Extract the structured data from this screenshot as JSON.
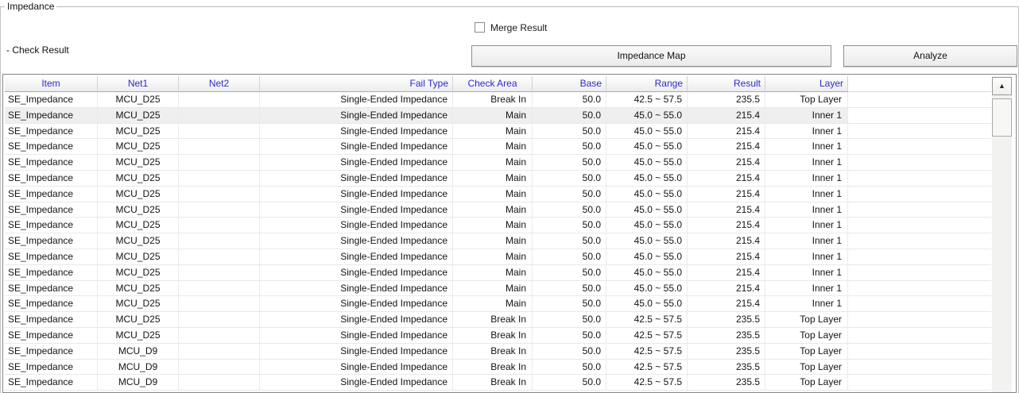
{
  "panel": {
    "title": "Impedance",
    "section_label": "- Check Result"
  },
  "toolbar": {
    "merge_result_label": "Merge Result",
    "merge_result_checked": false,
    "impedance_map_label": "Impedance Map",
    "analyze_label": "Analyze"
  },
  "table": {
    "columns": [
      {
        "key": "item",
        "label": "Item"
      },
      {
        "key": "net1",
        "label": "Net1"
      },
      {
        "key": "net2",
        "label": "Net2"
      },
      {
        "key": "fail-type",
        "label": "Fail Type"
      },
      {
        "key": "check-area",
        "label": "Check Area"
      },
      {
        "key": "base",
        "label": "Base"
      },
      {
        "key": "range",
        "label": "Range"
      },
      {
        "key": "result",
        "label": "Result"
      },
      {
        "key": "layer",
        "label": "Layer"
      }
    ],
    "selected_row_index": 1,
    "rows": [
      [
        "SE_Impedance",
        "MCU_D25",
        "",
        "Single-Ended Impedance",
        "Break In",
        "50.0",
        "42.5 ~ 57.5",
        "235.5",
        "Top Layer"
      ],
      [
        "SE_Impedance",
        "MCU_D25",
        "",
        "Single-Ended Impedance",
        "Main",
        "50.0",
        "45.0 ~ 55.0",
        "215.4",
        "Inner 1"
      ],
      [
        "SE_Impedance",
        "MCU_D25",
        "",
        "Single-Ended Impedance",
        "Main",
        "50.0",
        "45.0 ~ 55.0",
        "215.4",
        "Inner 1"
      ],
      [
        "SE_Impedance",
        "MCU_D25",
        "",
        "Single-Ended Impedance",
        "Main",
        "50.0",
        "45.0 ~ 55.0",
        "215.4",
        "Inner 1"
      ],
      [
        "SE_Impedance",
        "MCU_D25",
        "",
        "Single-Ended Impedance",
        "Main",
        "50.0",
        "45.0 ~ 55.0",
        "215.4",
        "Inner 1"
      ],
      [
        "SE_Impedance",
        "MCU_D25",
        "",
        "Single-Ended Impedance",
        "Main",
        "50.0",
        "45.0 ~ 55.0",
        "215.4",
        "Inner 1"
      ],
      [
        "SE_Impedance",
        "MCU_D25",
        "",
        "Single-Ended Impedance",
        "Main",
        "50.0",
        "45.0 ~ 55.0",
        "215.4",
        "Inner 1"
      ],
      [
        "SE_Impedance",
        "MCU_D25",
        "",
        "Single-Ended Impedance",
        "Main",
        "50.0",
        "45.0 ~ 55.0",
        "215.4",
        "Inner 1"
      ],
      [
        "SE_Impedance",
        "MCU_D25",
        "",
        "Single-Ended Impedance",
        "Main",
        "50.0",
        "45.0 ~ 55.0",
        "215.4",
        "Inner 1"
      ],
      [
        "SE_Impedance",
        "MCU_D25",
        "",
        "Single-Ended Impedance",
        "Main",
        "50.0",
        "45.0 ~ 55.0",
        "215.4",
        "Inner 1"
      ],
      [
        "SE_Impedance",
        "MCU_D25",
        "",
        "Single-Ended Impedance",
        "Main",
        "50.0",
        "45.0 ~ 55.0",
        "215.4",
        "Inner 1"
      ],
      [
        "SE_Impedance",
        "MCU_D25",
        "",
        "Single-Ended Impedance",
        "Main",
        "50.0",
        "45.0 ~ 55.0",
        "215.4",
        "Inner 1"
      ],
      [
        "SE_Impedance",
        "MCU_D25",
        "",
        "Single-Ended Impedance",
        "Main",
        "50.0",
        "45.0 ~ 55.0",
        "215.4",
        "Inner 1"
      ],
      [
        "SE_Impedance",
        "MCU_D25",
        "",
        "Single-Ended Impedance",
        "Main",
        "50.0",
        "45.0 ~ 55.0",
        "215.4",
        "Inner 1"
      ],
      [
        "SE_Impedance",
        "MCU_D25",
        "",
        "Single-Ended Impedance",
        "Break In",
        "50.0",
        "42.5 ~ 57.5",
        "235.5",
        "Top Layer"
      ],
      [
        "SE_Impedance",
        "MCU_D25",
        "",
        "Single-Ended Impedance",
        "Break In",
        "50.0",
        "42.5 ~ 57.5",
        "235.5",
        "Top Layer"
      ],
      [
        "SE_Impedance",
        "MCU_D9",
        "",
        "Single-Ended Impedance",
        "Break In",
        "50.0",
        "42.5 ~ 57.5",
        "235.5",
        "Top Layer"
      ],
      [
        "SE_Impedance",
        "MCU_D9",
        "",
        "Single-Ended Impedance",
        "Break In",
        "50.0",
        "42.5 ~ 57.5",
        "235.5",
        "Top Layer"
      ],
      [
        "SE_Impedance",
        "MCU_D9",
        "",
        "Single-Ended Impedance",
        "Break In",
        "50.0",
        "42.5 ~ 57.5",
        "235.5",
        "Top Layer"
      ]
    ]
  },
  "scrollbar": {
    "up_arrow_icon": "▲"
  },
  "colors": {
    "header_text": "#2b2bcc",
    "row_highlight": "#efefef"
  }
}
